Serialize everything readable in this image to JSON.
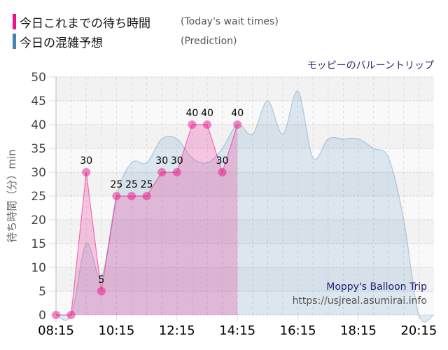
{
  "legend": [
    {
      "label": "今日これまでの待ち時間",
      "sub": "(Today's wait times)",
      "color": "#ee1188"
    },
    {
      "label": "今日の混雑予想",
      "sub": "(Prediction)",
      "color": "#4682b4"
    }
  ],
  "title": "モッピーのバルーントリップ",
  "watermark": {
    "line1": "Moppy's Balloon Trip",
    "line2": "https://usjreal.asumirai.info"
  },
  "chart_data": {
    "type": "area",
    "title": "モッピーのバルーントリップ",
    "xlabel": "",
    "ylabel": "待ち時間（分）min",
    "ylim": [
      0,
      50
    ],
    "y_ticks": [
      0,
      5,
      10,
      15,
      20,
      25,
      30,
      35,
      40,
      45,
      50
    ],
    "x_tick_labels": [
      "08:15",
      "10:15",
      "12:15",
      "14:15",
      "16:15",
      "18:15",
      "20:15"
    ],
    "grid": true,
    "legend_position": "top-left",
    "series": [
      {
        "name": "今日これまでの待ち時間 (Today's wait times)",
        "color": "#ee1188",
        "x": [
          "08:15",
          "08:45",
          "09:15",
          "09:45",
          "10:15",
          "10:45",
          "11:15",
          "11:45",
          "12:15",
          "12:45",
          "13:15",
          "13:45",
          "14:15"
        ],
        "values": [
          0,
          0,
          30,
          5,
          25,
          25,
          25,
          30,
          30,
          40,
          40,
          30,
          40
        ],
        "labels": [
          "",
          "",
          "30",
          "5",
          "25",
          "25",
          "25",
          "30",
          "30",
          "40",
          "40",
          "30",
          "40"
        ]
      },
      {
        "name": "今日の混雑予想 (Prediction)",
        "color": "#4682b4",
        "x": [
          "08:15",
          "08:45",
          "09:15",
          "09:45",
          "10:15",
          "10:45",
          "11:15",
          "11:45",
          "12:15",
          "12:45",
          "13:15",
          "13:45",
          "14:15",
          "14:45",
          "15:15",
          "15:45",
          "16:15",
          "16:45",
          "17:15",
          "17:45",
          "18:15",
          "18:45",
          "19:15",
          "19:45",
          "20:15",
          "20:45"
        ],
        "values": [
          0,
          0,
          15,
          8,
          25,
          32,
          32,
          37,
          37,
          33,
          32,
          35,
          40,
          38,
          45,
          38,
          47,
          33,
          37,
          37,
          37,
          35,
          33,
          20,
          0,
          0
        ]
      }
    ]
  }
}
